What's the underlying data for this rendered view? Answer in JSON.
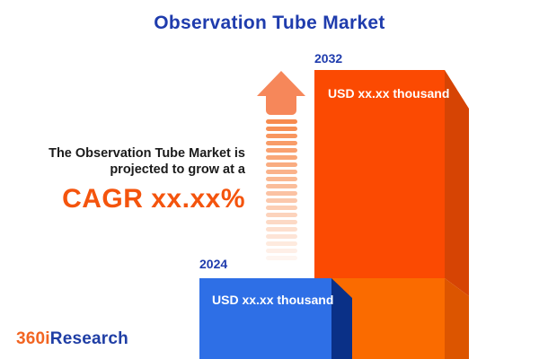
{
  "title": "Observation Tube Market",
  "description": {
    "line1": "The Observation Tube Market is",
    "line2": "projected to grow at a",
    "cagr": "CAGR xx.xx%"
  },
  "chart_data": {
    "type": "bar",
    "title": "Observation Tube Market",
    "categories": [
      "2024",
      "2032"
    ],
    "value_labels": [
      "USD xx.xx thousand",
      "USD xx.xx thousand"
    ],
    "unit": "USD thousand",
    "annotation": "The Observation Tube Market is projected to grow at a CAGR xx.xx%",
    "legend": "none",
    "grid": "off",
    "style": "3d-infographic-bars"
  },
  "colors": {
    "bar_2024_front": "#2e6fe6",
    "bar_2024_side": "#0a3087",
    "bar_2032_front_upper": "#fb4a02",
    "bar_2032_side_upper": "#d64404",
    "bar_2032_front_lower": "#fa6b00",
    "bar_2032_side_lower": "#dc5500",
    "arrow": "#f6875a",
    "accent_orange": "#f4540d",
    "navy_text": "#1f3cad"
  },
  "logo": {
    "prefix": "360i",
    "suffix": "Research"
  }
}
